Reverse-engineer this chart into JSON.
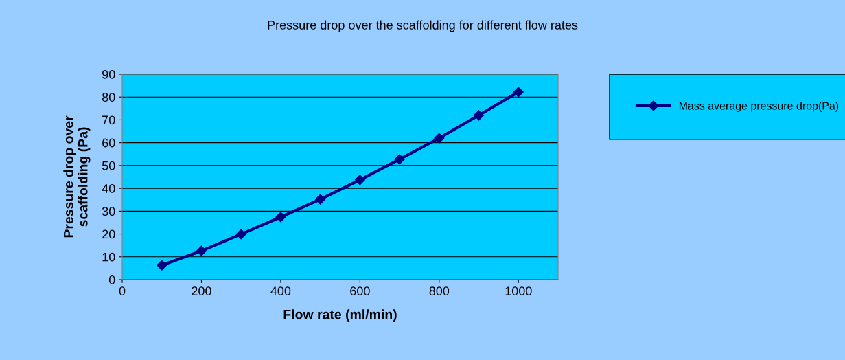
{
  "chart_data": {
    "type": "line",
    "title": "Pressure drop over the scaffolding for different flow rates",
    "xlabel": "Flow rate (ml/min)",
    "ylabel": "Pressure drop over\nscaffolding (Pa)",
    "x": [
      100,
      200,
      300,
      400,
      500,
      600,
      700,
      800,
      900,
      1000
    ],
    "series": [
      {
        "name": "Mass average pressure drop(Pa)",
        "color": "#000080",
        "values": [
          6.3,
          12.6,
          19.9,
          27.4,
          35.2,
          43.7,
          52.7,
          62.0,
          72.0,
          82.2
        ]
      }
    ],
    "xlim": [
      0,
      1100
    ],
    "xticks": [
      0,
      200,
      400,
      600,
      800,
      1000
    ],
    "ylim": [
      0,
      90
    ],
    "yticks": [
      0,
      10,
      20,
      30,
      40,
      50,
      60,
      70,
      80,
      90
    ],
    "grid": "y",
    "legend": "right",
    "marker": "diamond",
    "line_style": "solid"
  }
}
